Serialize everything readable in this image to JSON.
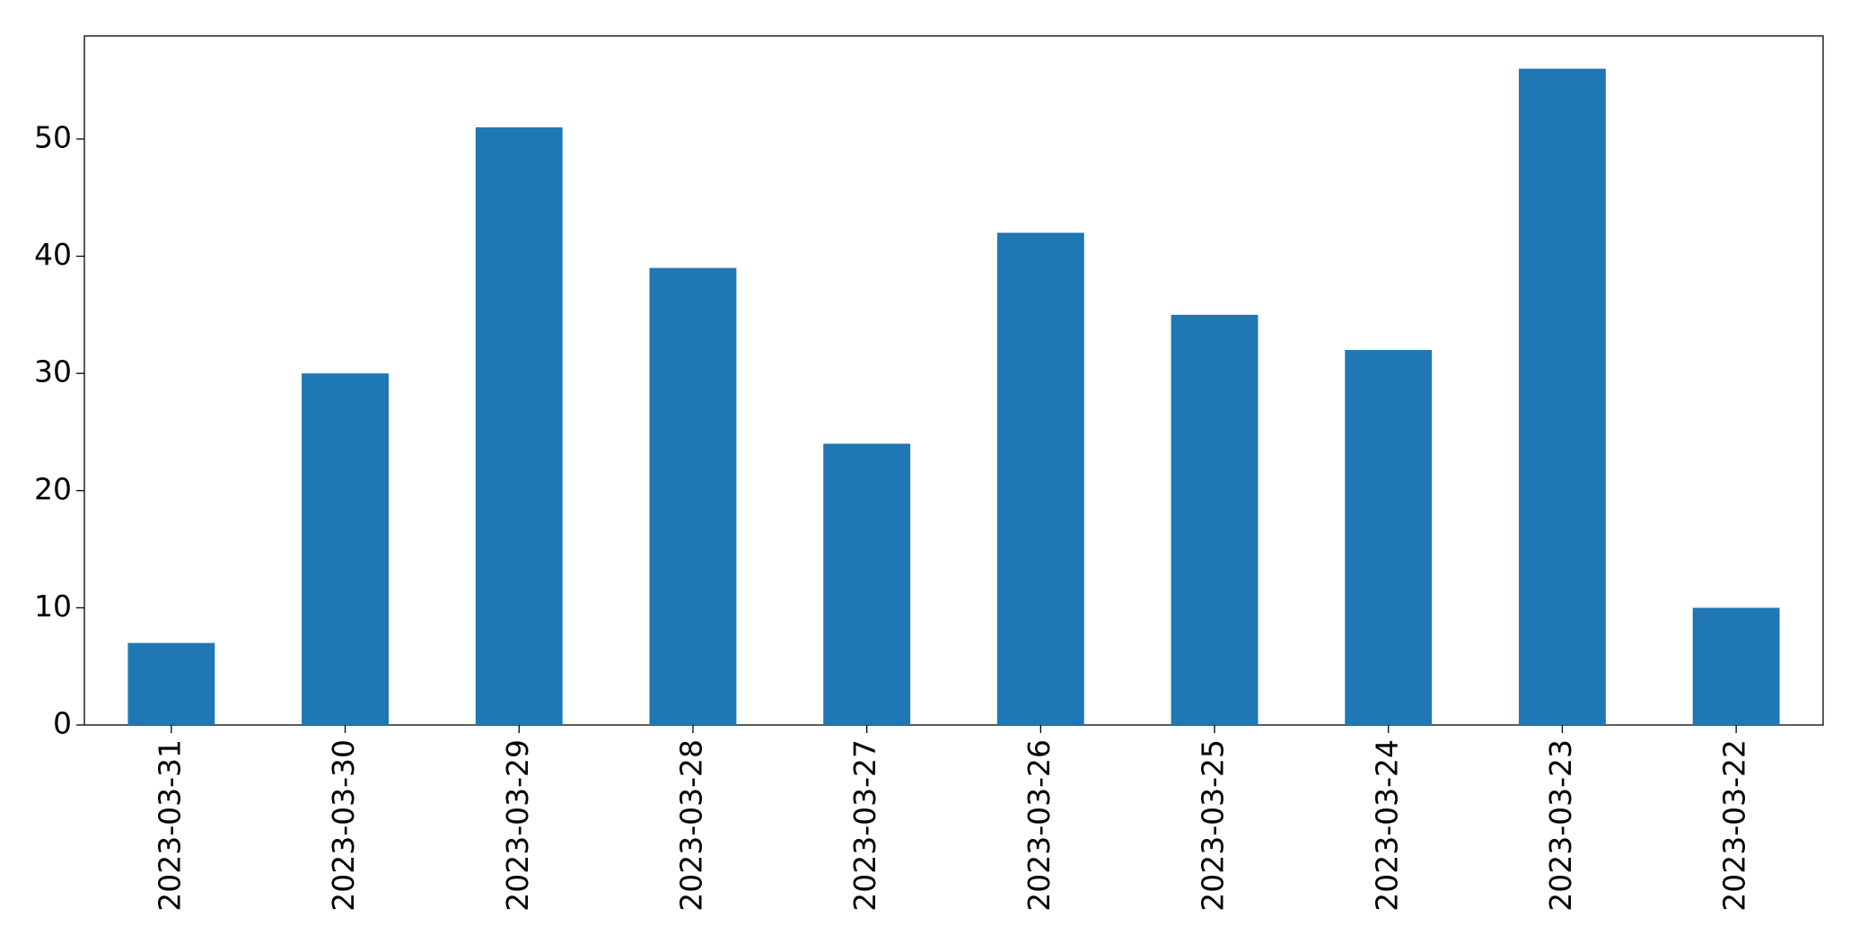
{
  "chart_data": {
    "type": "bar",
    "categories": [
      "2023-03-31",
      "2023-03-30",
      "2023-03-29",
      "2023-03-28",
      "2023-03-27",
      "2023-03-26",
      "2023-03-25",
      "2023-03-24",
      "2023-03-23",
      "2023-03-22"
    ],
    "values": [
      7,
      30,
      51,
      39,
      24,
      42,
      35,
      32,
      56,
      10
    ],
    "color": "#1f77b4",
    "ylim": [
      0,
      58.8
    ],
    "yticks": [
      0,
      10,
      20,
      30,
      40,
      50
    ],
    "grid": false
  }
}
